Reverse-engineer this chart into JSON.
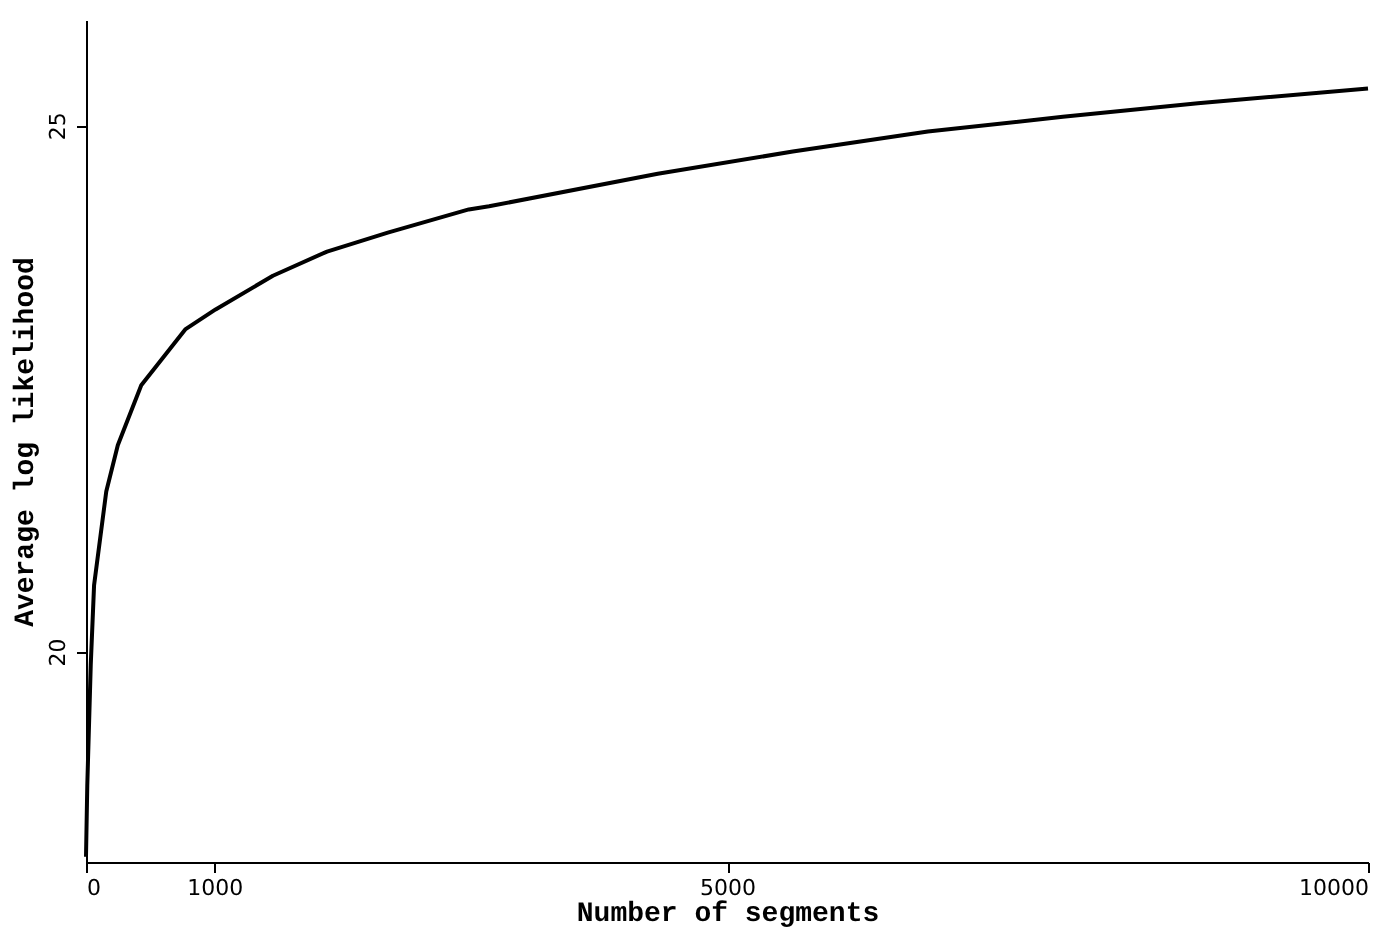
{
  "chart_data": {
    "type": "line",
    "xlabel": "Number of segments",
    "ylabel": "Average log likelihood",
    "x": [
      0,
      10,
      37,
      63,
      158,
      248,
      431,
      774,
      1011,
      1458,
      1880,
      2354,
      2986,
      3144,
      4460,
      5513,
      6567,
      7620,
      8673,
      10000
    ],
    "series": [
      {
        "color": "#000000",
        "values": [
          18.05,
          18.73,
          19.87,
          20.63,
          21.52,
          21.96,
          22.53,
          23.06,
          23.25,
          23.57,
          23.8,
          23.98,
          24.2,
          24.23,
          24.54,
          24.75,
          24.94,
          25.08,
          25.21,
          25.35
        ]
      }
    ],
    "xlim": [
      0,
      10000
    ],
    "ylim": [
      18,
      26
    ],
    "xticks": [
      0,
      1000,
      5000,
      10000
    ],
    "yticks": [
      20,
      25
    ],
    "grid": false,
    "legend": false
  }
}
